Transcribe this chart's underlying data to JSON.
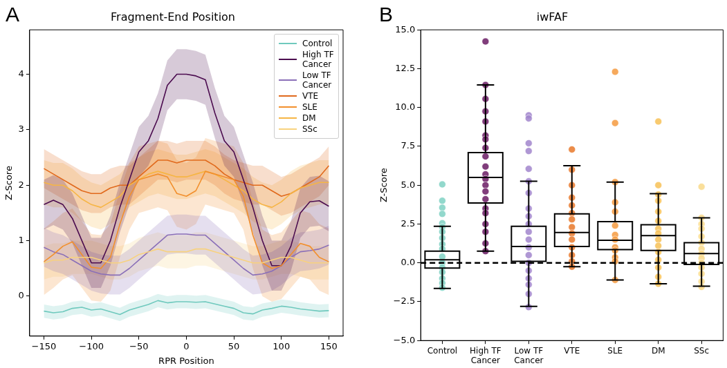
{
  "chart_data": [
    {
      "type": "line",
      "title": "Fragment-End Position",
      "xlabel": "RPR Position",
      "ylabel": "Z-Score",
      "annotations": [
        "A"
      ],
      "x": [
        -150,
        -140,
        -130,
        -120,
        -110,
        -100,
        -90,
        -80,
        -70,
        -60,
        -50,
        -40,
        -30,
        -20,
        -10,
        0,
        10,
        20,
        30,
        40,
        50,
        60,
        70,
        80,
        90,
        100,
        110,
        120,
        130,
        140,
        150
      ],
      "xlim": [
        -165,
        165
      ],
      "xticks": [
        {
          "value": -150,
          "label": "−150"
        },
        {
          "value": -100,
          "label": "−100"
        },
        {
          "value": -50,
          "label": "−50"
        },
        0,
        50,
        100,
        150
      ],
      "ylim": [
        -0.72,
        4.8
      ],
      "yticks": [
        0,
        1,
        2,
        3,
        4
      ],
      "grid": false,
      "legend": "top right",
      "marker": "none",
      "series": [
        {
          "name": "Control",
          "color": "#6fc9bd",
          "values": [
            -0.27,
            -0.3,
            -0.28,
            -0.22,
            -0.2,
            -0.25,
            -0.23,
            -0.28,
            -0.33,
            -0.25,
            -0.2,
            -0.15,
            -0.08,
            -0.12,
            -0.1,
            -0.1,
            -0.11,
            -0.1,
            -0.14,
            -0.18,
            -0.22,
            -0.3,
            -0.32,
            -0.25,
            -0.22,
            -0.18,
            -0.2,
            -0.23,
            -0.25,
            -0.27,
            -0.26
          ],
          "lower": [
            -0.39,
            -0.42,
            -0.4,
            -0.34,
            -0.32,
            -0.37,
            -0.35,
            -0.4,
            -0.45,
            -0.37,
            -0.32,
            -0.27,
            -0.2,
            -0.24,
            -0.22,
            -0.22,
            -0.23,
            -0.22,
            -0.26,
            -0.3,
            -0.34,
            -0.42,
            -0.44,
            -0.37,
            -0.34,
            -0.3,
            -0.32,
            -0.35,
            -0.37,
            -0.39,
            -0.38
          ],
          "upper": [
            -0.15,
            -0.18,
            -0.16,
            -0.1,
            -0.08,
            -0.13,
            -0.11,
            -0.16,
            -0.21,
            -0.13,
            -0.08,
            -0.03,
            0.04,
            0,
            0.02,
            0.02,
            0.01,
            0.02,
            -0.02,
            -0.06,
            -0.1,
            -0.18,
            -0.2,
            -0.13,
            -0.1,
            -0.06,
            -0.08,
            -0.11,
            -0.13,
            -0.15,
            -0.14
          ]
        },
        {
          "name": "High TF Cancer",
          "color": "#4b0c4f",
          "values": [
            1.65,
            1.73,
            1.65,
            1.4,
            1.0,
            0.6,
            0.6,
            1.0,
            1.6,
            2.1,
            2.6,
            2.8,
            3.2,
            3.8,
            4.0,
            4.0,
            3.97,
            3.9,
            3.3,
            2.8,
            2.6,
            2.1,
            1.6,
            1.0,
            0.55,
            0.55,
            0.9,
            1.5,
            1.7,
            1.72,
            1.62
          ],
          "lower": [
            1.2,
            1.28,
            1.2,
            0.95,
            0.55,
            0.15,
            0.15,
            0.55,
            1.15,
            1.65,
            2.15,
            2.35,
            2.75,
            3.35,
            3.55,
            3.55,
            3.52,
            3.45,
            2.85,
            2.35,
            2.15,
            1.65,
            1.15,
            0.55,
            0.1,
            0.1,
            0.45,
            1.05,
            1.25,
            1.27,
            1.17
          ],
          "upper": [
            2.1,
            2.18,
            2.1,
            1.85,
            1.45,
            1.05,
            1.05,
            1.45,
            2.05,
            2.55,
            3.05,
            3.25,
            3.65,
            4.25,
            4.45,
            4.45,
            4.42,
            4.35,
            3.75,
            3.25,
            3.05,
            2.55,
            2.05,
            1.45,
            1.0,
            1.0,
            1.35,
            1.95,
            2.15,
            2.17,
            2.07
          ]
        },
        {
          "name": "Low TF Cancer",
          "color": "#8a6fb8",
          "values": [
            0.88,
            0.8,
            0.75,
            0.65,
            0.55,
            0.45,
            0.4,
            0.38,
            0.38,
            0.5,
            0.65,
            0.8,
            0.95,
            1.1,
            1.12,
            1.12,
            1.1,
            1.1,
            0.95,
            0.8,
            0.65,
            0.5,
            0.38,
            0.4,
            0.45,
            0.55,
            0.7,
            0.8,
            0.82,
            0.85,
            0.92
          ],
          "lower": [
            0.53,
            0.45,
            0.4,
            0.3,
            0.2,
            0.1,
            0.05,
            0.03,
            0.03,
            0.15,
            0.3,
            0.45,
            0.6,
            0.75,
            0.77,
            0.77,
            0.75,
            0.75,
            0.6,
            0.45,
            0.3,
            0.15,
            0.03,
            0.05,
            0.1,
            0.2,
            0.35,
            0.45,
            0.47,
            0.5,
            0.57
          ],
          "upper": [
            1.23,
            1.15,
            1.1,
            1.0,
            0.9,
            0.8,
            0.75,
            0.73,
            0.73,
            0.85,
            1.0,
            1.15,
            1.3,
            1.45,
            1.47,
            1.47,
            1.45,
            1.45,
            1.3,
            1.15,
            1.0,
            0.85,
            0.73,
            0.75,
            0.8,
            0.9,
            1.05,
            1.15,
            1.17,
            1.2,
            1.27
          ]
        },
        {
          "name": "VTE",
          "color": "#e0691c",
          "values": [
            2.3,
            2.2,
            2.1,
            2.0,
            1.9,
            1.85,
            1.85,
            1.95,
            2.0,
            2.0,
            2.15,
            2.3,
            2.45,
            2.45,
            2.4,
            2.45,
            2.45,
            2.45,
            2.35,
            2.2,
            2.1,
            2.05,
            2.0,
            2.0,
            1.9,
            1.8,
            1.85,
            1.95,
            2.05,
            2.15,
            2.35
          ],
          "lower": [
            1.95,
            1.85,
            1.75,
            1.65,
            1.55,
            1.5,
            1.5,
            1.6,
            1.65,
            1.65,
            1.8,
            1.95,
            2.1,
            2.1,
            2.05,
            2.1,
            2.1,
            2.1,
            2.0,
            1.85,
            1.75,
            1.7,
            1.65,
            1.65,
            1.55,
            1.45,
            1.5,
            1.6,
            1.7,
            1.8,
            2.0
          ],
          "upper": [
            2.65,
            2.55,
            2.45,
            2.35,
            2.25,
            2.2,
            2.2,
            2.3,
            2.35,
            2.35,
            2.5,
            2.65,
            2.8,
            2.8,
            2.75,
            2.8,
            2.8,
            2.8,
            2.7,
            2.55,
            2.45,
            2.4,
            2.35,
            2.35,
            2.25,
            2.15,
            2.2,
            2.3,
            2.4,
            2.5,
            2.7
          ]
        },
        {
          "name": "SLE",
          "color": "#f28f2c",
          "values": [
            0.62,
            0.75,
            0.9,
            0.98,
            0.75,
            0.52,
            0.5,
            0.7,
            1.3,
            1.8,
            2.1,
            2.15,
            2.2,
            2.15,
            1.85,
            1.8,
            1.9,
            2.25,
            2.2,
            2.15,
            2.1,
            1.8,
            1.1,
            0.6,
            0.5,
            0.55,
            0.75,
            0.95,
            0.9,
            0.7,
            0.62
          ],
          "lower": [
            0.02,
            0.15,
            0.3,
            0.38,
            0.15,
            -0.08,
            -0.1,
            0.1,
            0.7,
            1.2,
            1.5,
            1.55,
            1.6,
            1.55,
            1.25,
            1.2,
            1.3,
            1.65,
            1.6,
            1.55,
            1.5,
            1.2,
            0.5,
            0,
            -0.1,
            -0.05,
            0.15,
            0.35,
            0.3,
            0.1,
            0.02
          ],
          "upper": [
            1.22,
            1.35,
            1.5,
            1.58,
            1.35,
            1.12,
            1.1,
            1.3,
            1.9,
            2.4,
            2.7,
            2.75,
            2.8,
            2.75,
            2.45,
            2.4,
            2.5,
            2.85,
            2.8,
            2.75,
            2.7,
            2.4,
            1.7,
            1.2,
            1.1,
            1.15,
            1.35,
            1.55,
            1.5,
            1.3,
            1.22
          ]
        },
        {
          "name": "DM",
          "color": "#f6b544",
          "values": [
            2.05,
            2.0,
            2.0,
            1.9,
            1.75,
            1.65,
            1.6,
            1.7,
            1.8,
            2.0,
            2.1,
            2.2,
            2.25,
            2.2,
            2.15,
            2.15,
            2.2,
            2.25,
            2.2,
            2.1,
            2.0,
            1.9,
            1.75,
            1.65,
            1.6,
            1.7,
            1.85,
            1.95,
            2.0,
            2.05,
            2.05
          ],
          "lower": [
            1.65,
            1.6,
            1.6,
            1.5,
            1.35,
            1.25,
            1.2,
            1.3,
            1.4,
            1.6,
            1.7,
            1.8,
            1.85,
            1.8,
            1.75,
            1.75,
            1.8,
            1.85,
            1.8,
            1.7,
            1.6,
            1.5,
            1.35,
            1.25,
            1.2,
            1.3,
            1.45,
            1.55,
            1.6,
            1.65,
            1.65
          ],
          "upper": [
            2.45,
            2.4,
            2.4,
            2.3,
            2.15,
            2.05,
            2.0,
            2.1,
            2.2,
            2.4,
            2.5,
            2.6,
            2.65,
            2.6,
            2.55,
            2.55,
            2.6,
            2.65,
            2.6,
            2.5,
            2.4,
            2.3,
            2.15,
            2.05,
            2.0,
            2.1,
            2.25,
            2.35,
            2.4,
            2.45,
            2.45
          ]
        },
        {
          "name": "SSc",
          "color": "#f8d27e",
          "values": [
            0.6,
            0.65,
            0.65,
            0.7,
            0.7,
            0.7,
            0.65,
            0.6,
            0.6,
            0.65,
            0.75,
            0.8,
            0.85,
            0.8,
            0.8,
            0.8,
            0.85,
            0.85,
            0.8,
            0.75,
            0.7,
            0.65,
            0.6,
            0.6,
            0.65,
            0.7,
            0.7,
            0.65,
            0.6,
            0.6,
            0.6
          ],
          "lower": [
            0.3,
            0.35,
            0.35,
            0.4,
            0.4,
            0.4,
            0.35,
            0.3,
            0.3,
            0.35,
            0.45,
            0.5,
            0.55,
            0.5,
            0.5,
            0.5,
            0.55,
            0.55,
            0.5,
            0.45,
            0.4,
            0.35,
            0.3,
            0.3,
            0.35,
            0.4,
            0.4,
            0.35,
            0.3,
            0.3,
            0.3
          ],
          "upper": [
            0.9,
            0.95,
            0.95,
            1.0,
            1.0,
            1.0,
            0.95,
            0.9,
            0.9,
            0.95,
            1.05,
            1.1,
            1.15,
            1.1,
            1.1,
            1.1,
            1.15,
            1.15,
            1.1,
            1.05,
            1.0,
            0.95,
            0.9,
            0.9,
            0.95,
            1.0,
            1.0,
            0.95,
            0.9,
            0.9,
            0.9
          ]
        }
      ]
    },
    {
      "type": "box",
      "title": "iwFAF",
      "ylabel": "Z-Score",
      "annotations": [
        "B"
      ],
      "grid": false,
      "legend": false,
      "categories": [
        "Control",
        "High TF Cancer",
        "Low TF Cancer",
        "VTE",
        "SLE",
        "DM",
        "SSc"
      ],
      "ylim": [
        -5,
        15
      ],
      "yticks": [
        {
          "value": -5,
          "label": "−5.0"
        },
        {
          "value": -2.5,
          "label": "−2.5"
        },
        {
          "value": 0,
          "label": "0.0"
        },
        {
          "value": 2.5,
          "label": "2.5"
        },
        {
          "value": 5,
          "label": "5.0"
        },
        {
          "value": 7.5,
          "label": "7.5"
        },
        {
          "value": 10,
          "label": "10.0"
        },
        {
          "value": 12.5,
          "label": "12.5"
        },
        {
          "value": 15,
          "label": "15.0"
        }
      ],
      "boxes": [
        {
          "low": -1.65,
          "q1": -0.33,
          "median": 0.2,
          "q3": 0.75,
          "high": 2.35
        },
        {
          "low": 0.75,
          "q1": 3.85,
          "median": 5.5,
          "q3": 7.1,
          "high": 11.45
        },
        {
          "low": -2.8,
          "q1": 0.1,
          "median": 1.05,
          "q3": 2.35,
          "high": 5.25
        },
        {
          "low": -0.25,
          "q1": 1.05,
          "median": 1.95,
          "q3": 3.15,
          "high": 6.25
        },
        {
          "low": -1.1,
          "q1": 0.85,
          "median": 1.45,
          "q3": 2.65,
          "high": 5.2
        },
        {
          "low": -1.35,
          "q1": 0.8,
          "median": 1.75,
          "q3": 2.45,
          "high": 4.45
        },
        {
          "low": -1.5,
          "q1": -0.1,
          "median": 0.6,
          "q3": 1.3,
          "high": 2.9
        }
      ],
      "ref_lines": [
        {
          "axis": "y",
          "value": 0,
          "color": "#000000",
          "line_style": "dashed"
        }
      ],
      "series": [
        {
          "type": "scatter",
          "color": "#7fd1c3",
          "x": [
            "Control",
            "Control",
            "Control",
            "Control",
            "Control",
            "Control",
            "Control",
            "Control",
            "Control",
            "Control",
            "Control",
            "Control",
            "Control",
            "Control",
            "Control",
            "Control",
            "Control"
          ],
          "values": [
            5.05,
            4.0,
            3.55,
            3.15,
            2.55,
            2.3,
            2.0,
            1.6,
            1.2,
            0.9,
            0.4,
            0,
            -0.3,
            -0.6,
            -1.0,
            -1.3,
            -1.6
          ]
        },
        {
          "type": "scatter",
          "color": "#6a1b64",
          "x": [
            "High TF Cancer",
            "High TF Cancer",
            "High TF Cancer",
            "High TF Cancer",
            "High TF Cancer",
            "High TF Cancer",
            "High TF Cancer",
            "High TF Cancer",
            "High TF Cancer",
            "High TF Cancer",
            "High TF Cancer",
            "High TF Cancer",
            "High TF Cancer",
            "High TF Cancer",
            "High TF Cancer",
            "High TF Cancer",
            "High TF Cancer",
            "High TF Cancer",
            "High TF Cancer",
            "High TF Cancer",
            "High TF Cancer"
          ],
          "values": [
            14.25,
            11.45,
            10.55,
            9.75,
            9.1,
            8.2,
            7.95,
            7.4,
            6.85,
            6.2,
            5.7,
            5.4,
            5.0,
            4.6,
            4.1,
            3.5,
            3.2,
            2.5,
            2.0,
            1.25,
            0.75
          ]
        },
        {
          "type": "scatter",
          "color": "#a185cc",
          "x": [
            "Low TF Cancer",
            "Low TF Cancer",
            "Low TF Cancer",
            "Low TF Cancer",
            "Low TF Cancer",
            "Low TF Cancer",
            "Low TF Cancer",
            "Low TF Cancer",
            "Low TF Cancer",
            "Low TF Cancer",
            "Low TF Cancer",
            "Low TF Cancer",
            "Low TF Cancer",
            "Low TF Cancer",
            "Low TF Cancer",
            "Low TF Cancer",
            "Low TF Cancer",
            "Low TF Cancer",
            "Low TF Cancer",
            "Low TF Cancer"
          ],
          "values": [
            9.5,
            9.3,
            7.7,
            7.2,
            6.05,
            5.25,
            4.5,
            3.5,
            3.0,
            2.5,
            2.0,
            1.5,
            1.0,
            0.5,
            0,
            -0.5,
            -1.0,
            -1.4,
            -2.0,
            -2.85
          ]
        },
        {
          "type": "scatter",
          "color": "#e8782a",
          "x": [
            "VTE",
            "VTE",
            "VTE",
            "VTE",
            "VTE",
            "VTE",
            "VTE",
            "VTE",
            "VTE",
            "VTE",
            "VTE",
            "VTE",
            "VTE",
            "VTE"
          ],
          "values": [
            7.3,
            6.0,
            5.0,
            4.2,
            3.7,
            3.2,
            2.8,
            2.3,
            1.9,
            1.5,
            1.0,
            0.5,
            0.1,
            -0.25
          ]
        },
        {
          "type": "scatter",
          "color": "#f59a3f",
          "x": [
            "SLE",
            "SLE",
            "SLE",
            "SLE",
            "SLE",
            "SLE",
            "SLE",
            "SLE",
            "SLE",
            "SLE",
            "SLE",
            "SLE",
            "SLE"
          ],
          "values": [
            12.3,
            9.0,
            5.2,
            3.9,
            3.3,
            2.4,
            1.8,
            1.5,
            1.0,
            0.8,
            0.35,
            0.1,
            -1.1
          ]
        },
        {
          "type": "scatter",
          "color": "#f7c156",
          "x": [
            "DM",
            "DM",
            "DM",
            "DM",
            "DM",
            "DM",
            "DM",
            "DM",
            "DM",
            "DM",
            "DM",
            "DM",
            "DM",
            "DM",
            "DM"
          ],
          "values": [
            9.1,
            5.0,
            4.4,
            4.0,
            3.3,
            2.7,
            2.2,
            1.9,
            1.5,
            1.1,
            0.7,
            0.2,
            -0.3,
            -0.9,
            -1.35
          ]
        },
        {
          "type": "scatter",
          "color": "#f9d98a",
          "x": [
            "SSc",
            "SSc",
            "SSc",
            "SSc",
            "SSc",
            "SSc",
            "SSc",
            "SSc",
            "SSc",
            "SSc",
            "SSc",
            "SSc",
            "SSc",
            "SSc"
          ],
          "values": [
            4.9,
            2.9,
            2.5,
            2.2,
            1.7,
            1.3,
            0.9,
            0.6,
            0.3,
            0,
            -0.3,
            -0.7,
            -1.2,
            -1.55
          ]
        }
      ]
    }
  ]
}
